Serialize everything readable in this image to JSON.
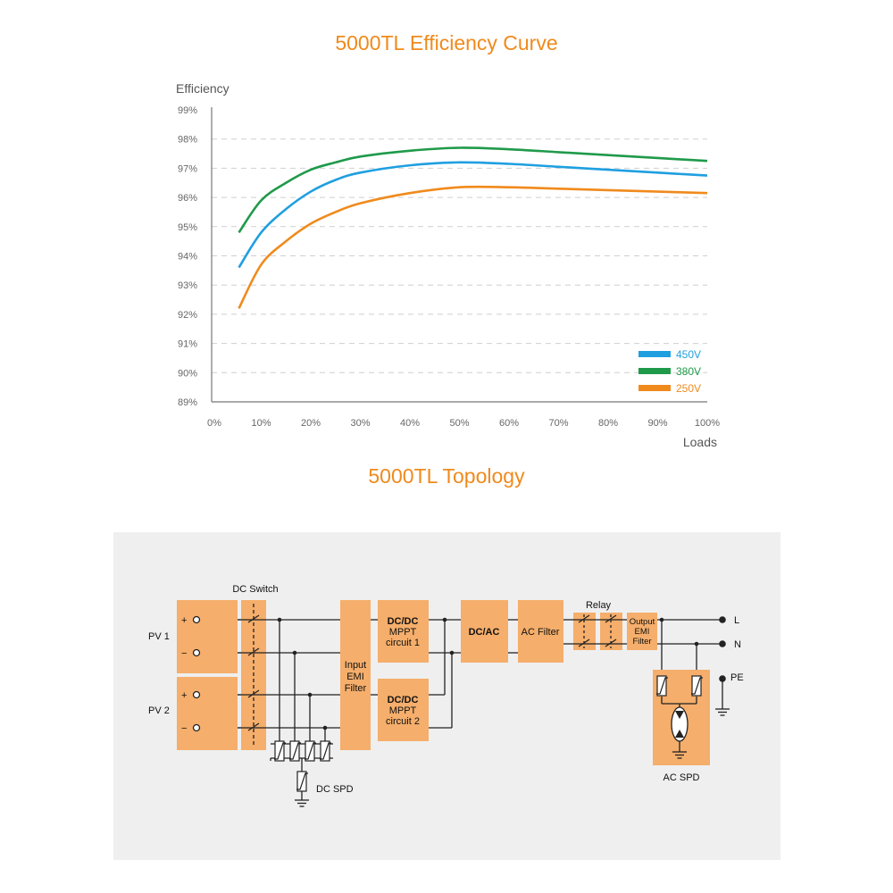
{
  "chart_data": {
    "type": "line",
    "title": "5000TL Efficiency Curve",
    "ylabel": "Efficiency",
    "xlabel": "Loads",
    "ylim": [
      89,
      99
    ],
    "xlim": [
      0,
      100
    ],
    "yticks": [
      "99%",
      "98%",
      "97%",
      "96%",
      "95%",
      "94%",
      "93%",
      "92%",
      "91%",
      "90%",
      "89%"
    ],
    "xticks": [
      "0%",
      "10%",
      "20%",
      "30%",
      "40%",
      "50%",
      "60%",
      "70%",
      "80%",
      "90%",
      "100%"
    ],
    "grid": true,
    "legend_position": "bottom-right",
    "series": [
      {
        "name": "450V",
        "color": "#1f9fe0",
        "x": [
          5.5,
          10,
          15,
          20,
          25,
          30,
          40,
          50,
          60,
          70,
          80,
          90,
          100
        ],
        "y": [
          93.6,
          94.8,
          95.6,
          96.2,
          96.6,
          96.85,
          97.1,
          97.2,
          97.15,
          97.05,
          96.95,
          96.85,
          96.75
        ]
      },
      {
        "name": "380V",
        "color": "#1f9a4a",
        "x": [
          5.5,
          10,
          15,
          20,
          25,
          30,
          40,
          50,
          60,
          70,
          80,
          90,
          100
        ],
        "y": [
          94.8,
          95.9,
          96.5,
          96.95,
          97.2,
          97.4,
          97.6,
          97.7,
          97.65,
          97.55,
          97.45,
          97.35,
          97.25
        ]
      },
      {
        "name": "250V",
        "color": "#f08a1c",
        "x": [
          5.5,
          10,
          15,
          20,
          25,
          30,
          40,
          50,
          60,
          70,
          80,
          90,
          100
        ],
        "y": [
          92.2,
          93.7,
          94.5,
          95.1,
          95.5,
          95.8,
          96.15,
          96.35,
          96.35,
          96.3,
          96.25,
          96.2,
          96.15
        ]
      }
    ]
  },
  "topology": {
    "title": "5000TL  Topology",
    "labels": {
      "dc_switch": "DC Switch",
      "pv1": "PV 1",
      "pv2": "PV 2",
      "plus": "+",
      "minus": "−",
      "input_emi": [
        "Input",
        "EMI",
        "Filter"
      ],
      "dcdc1": [
        "DC/DC",
        "MPPT",
        "circuit 1"
      ],
      "dcdc2": [
        "DC/DC",
        "MPPT",
        "circuit 2"
      ],
      "dcac": "DC/AC",
      "ac_filter": "AC Filter",
      "relay": "Relay",
      "output_emi": [
        "Output",
        "EMI",
        "Filter"
      ],
      "l": "L",
      "n": "N",
      "pe": "PE",
      "ac_spd": "AC SPD",
      "dc_spd": "DC SPD"
    },
    "colors": {
      "block": "#f5ae6b",
      "background": "#efefef",
      "line": "#222222"
    }
  }
}
